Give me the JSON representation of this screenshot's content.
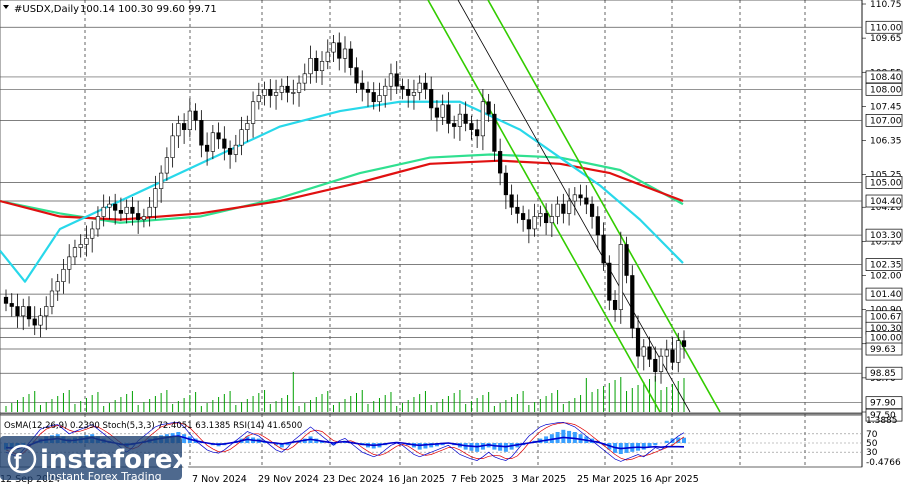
{
  "header": {
    "symbol": "#USDX,Daily",
    "ohlc": "100.14 100.30 99.60 99.71"
  },
  "indicator_header": "OsMA(12,26,9) 0.2390  Stoch(5,3,3) 72.4051 63.1385  RSI(14) 41.6500",
  "watermark": {
    "brand": "instaforex",
    "tagline": "Instant Forex Trading"
  },
  "colors": {
    "bull": "#00a000",
    "bear": "#e00000",
    "ema_fast": "#28d8ea",
    "ema_mid": "#30e090",
    "ema_slow": "#e01010",
    "channel": "#33cc00",
    "trendline": "#000000",
    "volume": "#00a000",
    "osma": "#3aa0ff",
    "rsi": "#0000cc",
    "stoch_main": "#0000cc",
    "stoch_signal": "#e00000"
  },
  "chart_data": {
    "type": "candlestick",
    "title": "#USDX,Daily",
    "y_ticks": [
      "110.75",
      "109.65",
      "108.55",
      "107.45",
      "106.35",
      "105.25",
      "104.20",
      "103.10",
      "102.00",
      "100.90",
      "99.80",
      "98.70",
      "97.60"
    ],
    "price_levels": [
      "110.00",
      "108.40",
      "108.00",
      "107.00",
      "105.00",
      "104.40",
      "103.30",
      "102.35",
      "101.40",
      "100.67",
      "100.30",
      "100.00",
      "99.63",
      "98.85",
      "97.90",
      "97.50"
    ],
    "current_price": "99.63",
    "x_labels": [
      "12 Sep 2024",
      "7 Nov 2024",
      "29 Nov 2024",
      "23 Dec 2024",
      "16 Jan 2025",
      "7 Feb 2025",
      "3 Mar 2025",
      "25 Mar 2025",
      "16 Apr 2025"
    ],
    "indicator_levels": [
      "1.3885",
      "70",
      "50",
      "30",
      "-0.4766"
    ],
    "close": [
      101.1,
      101.0,
      100.7,
      101.0,
      100.6,
      100.4,
      100.7,
      101.0,
      101.5,
      101.8,
      102.2,
      102.6,
      102.9,
      103.0,
      103.2,
      103.5,
      103.9,
      104.2,
      104.3,
      104.1,
      104.0,
      104.2,
      104.0,
      103.8,
      103.9,
      104.2,
      104.8,
      105.3,
      105.8,
      106.5,
      106.9,
      106.7,
      107.3,
      107.0,
      106.2,
      106.0,
      106.6,
      106.4,
      106.1,
      105.9,
      106.2,
      106.7,
      106.9,
      107.6,
      107.8,
      108.0,
      107.8,
      107.9,
      108.1,
      107.9,
      107.9,
      108.2,
      108.5,
      109.0,
      108.6,
      108.9,
      109.2,
      109.5,
      109.0,
      109.3,
      108.7,
      108.2,
      108.0,
      107.9,
      107.6,
      107.8,
      108.1,
      108.5,
      108.1,
      108.0,
      107.8,
      107.9,
      108.2,
      108.0,
      107.4,
      107.1,
      107.5,
      106.9,
      106.8,
      107.2,
      106.9,
      106.7,
      106.5,
      107.6,
      107.2,
      106.0,
      105.3,
      104.6,
      104.2,
      104.0,
      103.8,
      103.5,
      103.9,
      104.0,
      103.7,
      103.9,
      104.3,
      104.0,
      104.4,
      104.6,
      104.5,
      104.3,
      103.9,
      103.3,
      102.4,
      101.2,
      100.9,
      103.0,
      102.0,
      100.3,
      99.4,
      99.7,
      99.3,
      98.9,
      99.4,
      99.6,
      99.2,
      99.9,
      99.71
    ],
    "ema_fast_samples": [
      [
        0,
        102.8
      ],
      [
        25,
        101.8
      ],
      [
        60,
        103.5
      ],
      [
        120,
        104.4
      ],
      [
        200,
        105.6
      ],
      [
        280,
        106.8
      ],
      [
        340,
        107.3
      ],
      [
        400,
        107.6
      ],
      [
        460,
        107.6
      ],
      [
        520,
        106.7
      ],
      [
        560,
        105.8
      ],
      [
        600,
        104.9
      ],
      [
        640,
        103.8
      ],
      [
        683,
        102.4
      ]
    ],
    "ema_mid_samples": [
      [
        0,
        104.4
      ],
      [
        60,
        104.0
      ],
      [
        120,
        103.7
      ],
      [
        200,
        103.9
      ],
      [
        280,
        104.5
      ],
      [
        360,
        105.3
      ],
      [
        430,
        105.8
      ],
      [
        490,
        105.9
      ],
      [
        560,
        105.8
      ],
      [
        620,
        105.4
      ],
      [
        683,
        104.3
      ]
    ],
    "ema_slow_samples": [
      [
        0,
        104.4
      ],
      [
        60,
        103.9
      ],
      [
        120,
        103.8
      ],
      [
        200,
        104.0
      ],
      [
        280,
        104.4
      ],
      [
        360,
        105.0
      ],
      [
        430,
        105.6
      ],
      [
        500,
        105.7
      ],
      [
        560,
        105.6
      ],
      [
        610,
        105.3
      ],
      [
        683,
        104.4
      ]
    ],
    "osma": [
      -0.3,
      -0.25,
      -0.2,
      -0.1,
      0,
      0.1,
      0.2,
      0.3,
      0.35,
      0.4,
      0.3,
      0.2,
      0.25,
      0.3,
      0.35,
      0.4,
      0.3,
      0.2,
      0.1,
      0,
      -0.1,
      -0.2,
      -0.1,
      0,
      0.1,
      0.2,
      0.3,
      0.35,
      0.4,
      0.45,
      0.5,
      0.4,
      0.3,
      0.2,
      0.1,
      0,
      -0.1,
      -0.15,
      -0.1,
      0,
      0.1,
      0.2,
      0.3,
      0.25,
      0.2,
      0.1,
      0,
      -0.1,
      -0.2,
      -0.1,
      0,
      0.1,
      0.2,
      0.3,
      0.2,
      0.1,
      0,
      -0.1,
      0,
      0.1,
      0.05,
      0,
      -0.1,
      -0.2,
      -0.25,
      -0.2,
      -0.1,
      0,
      0.05,
      0,
      -0.1,
      -0.2,
      -0.3,
      -0.25,
      -0.2,
      -0.15,
      -0.1,
      0,
      -0.1,
      -0.2,
      -0.3,
      -0.35,
      -0.4,
      -0.3,
      -0.2,
      -0.3,
      -0.35,
      -0.4,
      -0.3,
      -0.2,
      -0.1,
      0,
      0.1,
      0.2,
      0.3,
      0.4,
      0.5,
      0.6,
      0.55,
      0.5,
      0.4,
      0.3,
      0.2,
      0.1,
      -0.1,
      -0.3,
      -0.45,
      -0.5,
      -0.45,
      -0.4,
      -0.35,
      -0.3,
      -0.2,
      -0.1,
      0,
      0.1,
      0.2,
      0.25,
      0.24
    ],
    "rsi": [
      40,
      39,
      38,
      42,
      45,
      50,
      55,
      57,
      58,
      60,
      57,
      55,
      56,
      58,
      60,
      62,
      58,
      55,
      52,
      50,
      47,
      46,
      48,
      50,
      52,
      55,
      58,
      60,
      62,
      64,
      65,
      62,
      58,
      55,
      52,
      50,
      48,
      47,
      48,
      50,
      52,
      55,
      58,
      56,
      55,
      53,
      51,
      50,
      48,
      50,
      52,
      54,
      56,
      58,
      56,
      54,
      52,
      50,
      52,
      53,
      51,
      49,
      47,
      46,
      45,
      46,
      48,
      50,
      51,
      50,
      48,
      46,
      45,
      46,
      47,
      48,
      49,
      50,
      48,
      46,
      44,
      43,
      42,
      44,
      46,
      44,
      43,
      42,
      44,
      46,
      48,
      50,
      52,
      54,
      56,
      58,
      60,
      62,
      61,
      60,
      58,
      56,
      54,
      52,
      48,
      44,
      40,
      38,
      39,
      40,
      41,
      40,
      41,
      42,
      41,
      42,
      42,
      42,
      41.65
    ],
    "stoch_main": [
      30,
      25,
      20,
      35,
      50,
      65,
      80,
      85,
      88,
      90,
      80,
      70,
      75,
      80,
      85,
      90,
      80,
      70,
      60,
      50,
      40,
      30,
      40,
      55,
      65,
      75,
      85,
      90,
      92,
      94,
      95,
      85,
      70,
      55,
      45,
      35,
      30,
      28,
      35,
      45,
      55,
      65,
      75,
      70,
      65,
      55,
      45,
      35,
      30,
      40,
      55,
      65,
      75,
      85,
      75,
      65,
      55,
      45,
      55,
      60,
      50,
      40,
      30,
      25,
      20,
      25,
      35,
      45,
      50,
      45,
      35,
      25,
      20,
      25,
      30,
      35,
      40,
      45,
      35,
      25,
      20,
      15,
      12,
      20,
      30,
      20,
      15,
      12,
      20,
      35,
      50,
      65,
      75,
      85,
      90,
      92,
      94,
      95,
      90,
      85,
      75,
      65,
      55,
      45,
      35,
      25,
      15,
      10,
      15,
      20,
      25,
      20,
      30,
      40,
      35,
      45,
      55,
      65,
      72.41
    ],
    "stoch_signal": [
      35,
      30,
      25,
      28,
      40,
      55,
      70,
      80,
      85,
      88,
      85,
      78,
      74,
      76,
      80,
      85,
      85,
      78,
      70,
      60,
      50,
      40,
      37,
      42,
      53,
      65,
      75,
      85,
      89,
      92,
      94,
      91,
      83,
      70,
      57,
      45,
      37,
      31,
      31,
      36,
      45,
      55,
      65,
      70,
      70,
      63,
      55,
      45,
      37,
      35,
      42,
      53,
      65,
      75,
      78,
      75,
      65,
      55,
      52,
      53,
      55,
      50,
      40,
      32,
      25,
      23,
      27,
      35,
      43,
      47,
      43,
      35,
      27,
      23,
      25,
      30,
      35,
      40,
      40,
      35,
      27,
      20,
      16,
      16,
      21,
      23,
      22,
      16,
      16,
      22,
      35,
      50,
      63,
      75,
      83,
      89,
      92,
      94,
      93,
      90,
      83,
      75,
      65,
      55,
      45,
      35,
      25,
      17,
      13,
      15,
      20,
      22,
      25,
      30,
      35,
      40,
      45,
      55,
      63.14
    ]
  }
}
